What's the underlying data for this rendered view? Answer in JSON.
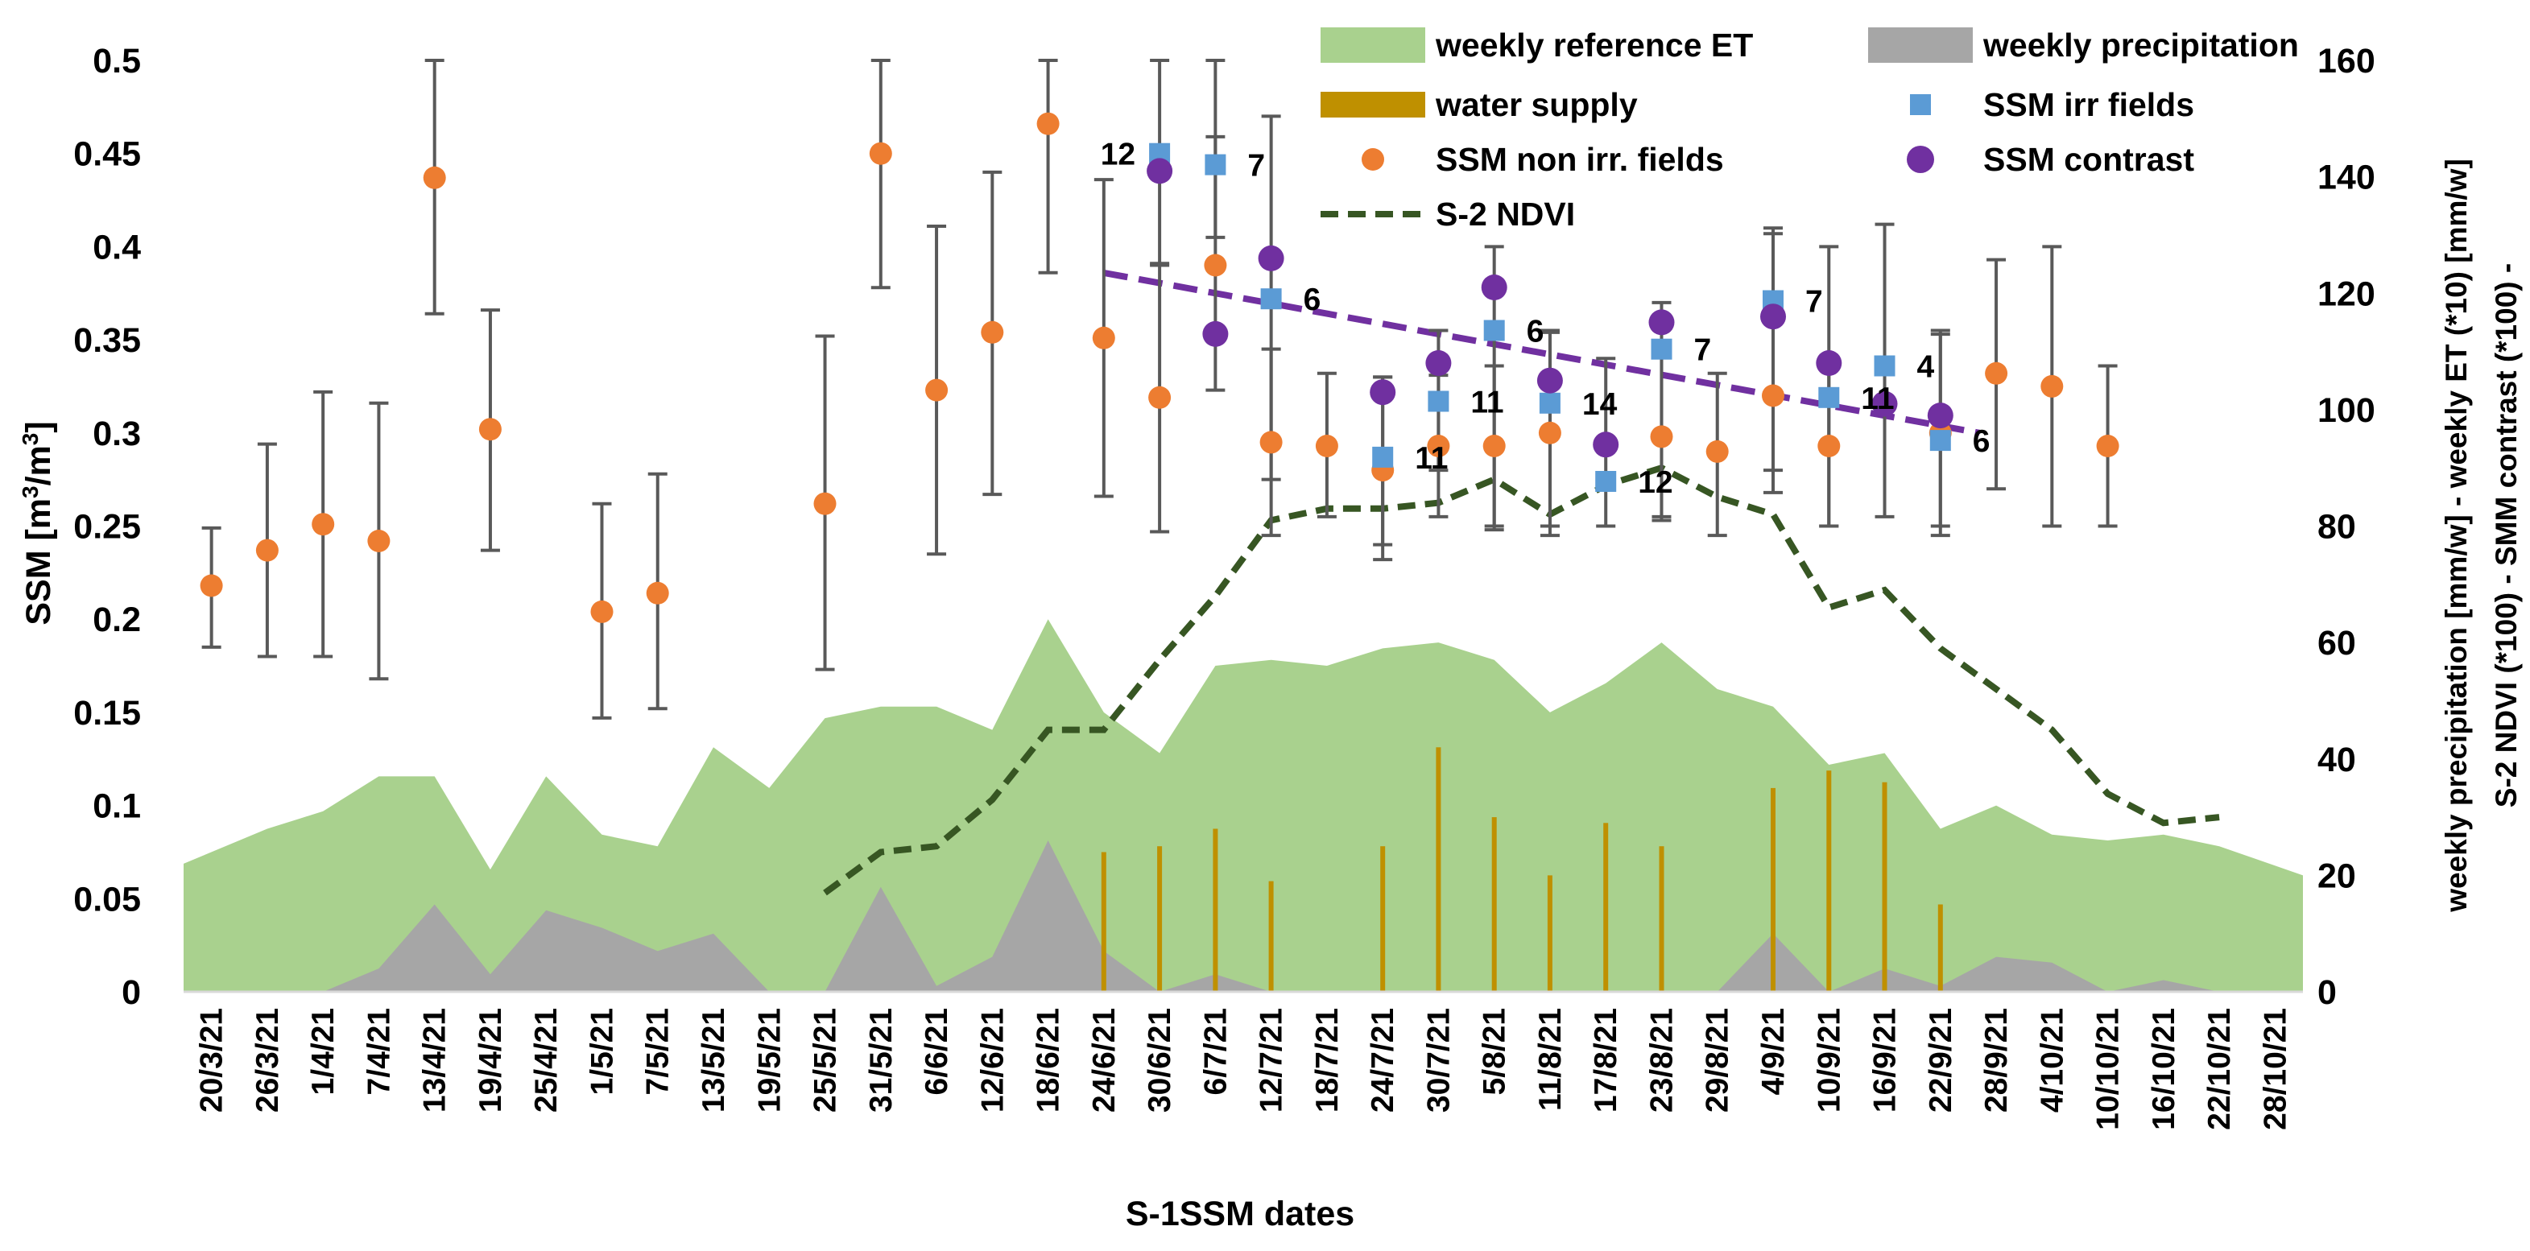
{
  "chart_data": {
    "type": "combo",
    "xlabel": "S-1SSM dates",
    "ylabel_left": "SSM [m3/m3]",
    "ylabel_left_main": "SSM [m",
    "ylabel_left_sup1": "3",
    "ylabel_left_mid": "/m",
    "ylabel_left_sup2": "3",
    "ylabel_left_end": "]",
    "ylabel_right_line1": "weekly precipitation [mm/w] - weekly  ET (*10)  [mm/w]",
    "ylabel_right_line2": "S-2 NDVI (*100) - SMM contrast (*100) -",
    "ylim_left": [
      0,
      0.5
    ],
    "ylim_right": [
      0,
      160
    ],
    "yticks_left": [
      "0",
      "0.05",
      "0.1",
      "0.15",
      "0.2",
      "0.25",
      "0.3",
      "0.35",
      "0.4",
      "0.45",
      "0.5"
    ],
    "yticks_right": [
      "0",
      "20",
      "40",
      "60",
      "80",
      "100",
      "120",
      "140",
      "160"
    ],
    "categories": [
      "20/3/21",
      "26/3/21",
      "1/4/21",
      "7/4/21",
      "13/4/21",
      "19/4/21",
      "25/4/21",
      "1/5/21",
      "7/5/21",
      "13/5/21",
      "19/5/21",
      "25/5/21",
      "31/5/21",
      "6/6/21",
      "12/6/21",
      "18/6/21",
      "24/6/21",
      "30/6/21",
      "6/7/21",
      "12/7/21",
      "18/7/21",
      "24/7/21",
      "30/7/21",
      "5/8/21",
      "11/8/21",
      "17/8/21",
      "23/8/21",
      "29/8/21",
      "4/9/21",
      "10/9/21",
      "16/9/21",
      "22/9/21",
      "28/9/21",
      "4/10/21",
      "10/10/21",
      "16/10/21",
      "22/10/21",
      "28/10/21"
    ],
    "legend": [
      {
        "key": "et",
        "label": "weekly reference ET"
      },
      {
        "key": "precip",
        "label": "weekly precipitation"
      },
      {
        "key": "supply",
        "label": "water supply"
      },
      {
        "key": "irr",
        "label": "SSM irr fields"
      },
      {
        "key": "nonirr",
        "label": "SSM non irr. fields"
      },
      {
        "key": "contrast",
        "label": "SSM contrast"
      },
      {
        "key": "ndvi",
        "label": "S-2 NDVI"
      }
    ],
    "colors": {
      "et": "#a9d18e",
      "precip": "#a6a6a6",
      "supply": "#bf9000",
      "irr": "#5b9bd5",
      "nonirr": "#ed7d31",
      "contrast": "#7030a0",
      "ndvi": "#375623",
      "errbar": "#595959"
    },
    "series": {
      "et": {
        "name": "weekly reference ET",
        "axis": "right",
        "values": [
          22,
          28,
          31,
          37,
          37,
          21,
          37,
          27,
          25,
          42,
          35,
          47,
          49,
          49,
          45,
          64,
          48,
          41,
          56,
          57,
          56,
          59,
          60,
          57,
          48,
          53,
          60,
          52,
          49,
          39,
          41,
          28,
          32,
          27,
          26,
          27,
          25,
          20
        ]
      },
      "precip": {
        "name": "weekly precipitation",
        "axis": "right",
        "values": [
          0,
          0,
          0,
          4,
          15,
          3,
          14,
          11,
          7,
          10,
          0,
          0,
          18,
          1,
          6,
          26,
          7,
          0,
          3,
          0,
          0,
          0,
          0,
          0,
          0,
          0,
          0,
          0,
          10,
          0,
          4,
          1,
          6,
          5,
          0,
          2,
          0,
          0
        ]
      },
      "supply": {
        "name": "water supply",
        "axis": "right",
        "values": [
          null,
          null,
          null,
          null,
          null,
          null,
          null,
          null,
          null,
          null,
          null,
          null,
          null,
          null,
          null,
          null,
          24,
          25,
          28,
          19,
          null,
          25,
          42,
          30,
          20,
          29,
          25,
          null,
          35,
          38,
          36,
          15,
          null,
          null,
          null,
          null,
          null,
          null
        ]
      },
      "ndvi": {
        "name": "S-2 NDVI",
        "axis": "right",
        "values": [
          null,
          null,
          null,
          null,
          null,
          null,
          null,
          null,
          null,
          null,
          null,
          17,
          24,
          25,
          33,
          45,
          45,
          57,
          68,
          81,
          83,
          83,
          84,
          88,
          82,
          87,
          90,
          85,
          82,
          66,
          69,
          59,
          52,
          45,
          34,
          29,
          30,
          null
        ]
      },
      "nonirr": {
        "name": "SSM non irr. fields",
        "axis": "left",
        "values": [
          0.218,
          0.237,
          0.251,
          0.242,
          0.437,
          0.302,
          null,
          0.204,
          0.214,
          null,
          null,
          0.262,
          0.45,
          0.323,
          0.354,
          0.466,
          0.351,
          0.319,
          0.39,
          0.295,
          0.293,
          0.28,
          0.293,
          0.293,
          0.3,
          null,
          0.298,
          0.29,
          0.32,
          0.293,
          null,
          0.3,
          0.332,
          0.325,
          0.293,
          null,
          null,
          null
        ],
        "err_low": [
          0.185,
          0.18,
          0.18,
          0.168,
          0.364,
          0.237,
          null,
          0.147,
          0.152,
          null,
          null,
          0.173,
          0.378,
          0.235,
          0.267,
          0.386,
          0.266,
          0.247,
          0.323,
          0.245,
          0.255,
          0.232,
          0.255,
          0.248,
          0.245,
          null,
          0.253,
          0.245,
          0.268,
          0.25,
          null,
          0.245,
          0.27,
          0.25,
          0.25,
          null,
          null,
          null
        ],
        "err_high": [
          0.249,
          0.294,
          0.322,
          0.316,
          0.5,
          0.366,
          null,
          0.262,
          0.278,
          null,
          null,
          0.352,
          0.5,
          0.411,
          0.44,
          0.5,
          0.436,
          0.391,
          0.459,
          0.345,
          0.332,
          0.33,
          0.331,
          0.336,
          0.354,
          null,
          0.342,
          0.332,
          0.407,
          0.34,
          null,
          0.353,
          0.393,
          0.4,
          0.336,
          null,
          null,
          null
        ]
      },
      "irr": {
        "name": "SSM irr fields",
        "axis": "left",
        "values": [
          null,
          null,
          null,
          null,
          null,
          null,
          null,
          null,
          null,
          null,
          null,
          null,
          null,
          null,
          null,
          null,
          null,
          0.45,
          0.444,
          0.372,
          null,
          0.287,
          0.317,
          0.355,
          0.316,
          0.274,
          0.345,
          null,
          0.371,
          0.319,
          0.336,
          0.296,
          null,
          null,
          null,
          null,
          null,
          null
        ],
        "labels": [
          null,
          null,
          null,
          null,
          null,
          null,
          null,
          null,
          null,
          null,
          null,
          null,
          null,
          null,
          null,
          null,
          null,
          "12",
          "7",
          "6",
          null,
          "11",
          "11",
          "6",
          "14",
          "12",
          "7",
          null,
          "7",
          "11",
          "4",
          "6",
          null,
          null,
          null,
          null,
          null,
          null
        ],
        "err_low": [
          null,
          null,
          null,
          null,
          null,
          null,
          null,
          null,
          null,
          null,
          null,
          null,
          null,
          null,
          null,
          null,
          null,
          0.39,
          0.405,
          0.275,
          null,
          0.24,
          0.28,
          0.25,
          0.25,
          0.25,
          0.255,
          null,
          0.28,
          0.25,
          0.255,
          0.25,
          null,
          null,
          null,
          null,
          null,
          null
        ],
        "err_high": [
          null,
          null,
          null,
          null,
          null,
          null,
          null,
          null,
          null,
          null,
          null,
          null,
          null,
          null,
          null,
          null,
          null,
          0.5,
          0.5,
          0.47,
          null,
          0.33,
          0.355,
          0.4,
          0.355,
          0.34,
          0.37,
          null,
          0.41,
          0.4,
          0.412,
          0.355,
          null,
          null,
          null,
          null,
          null,
          null
        ]
      },
      "contrast": {
        "name": "SSM contrast",
        "axis": "right",
        "values": [
          null,
          null,
          null,
          null,
          null,
          null,
          null,
          null,
          null,
          null,
          null,
          null,
          null,
          null,
          null,
          null,
          null,
          141,
          113,
          126,
          null,
          103,
          108,
          121,
          105,
          94,
          115,
          null,
          116,
          108,
          101,
          99,
          null,
          null,
          null,
          null,
          null,
          null
        ],
        "trend": {
          "start_index": 16,
          "start_value": 123.5,
          "end_index": 31.7,
          "end_value": 96
        }
      }
    }
  }
}
